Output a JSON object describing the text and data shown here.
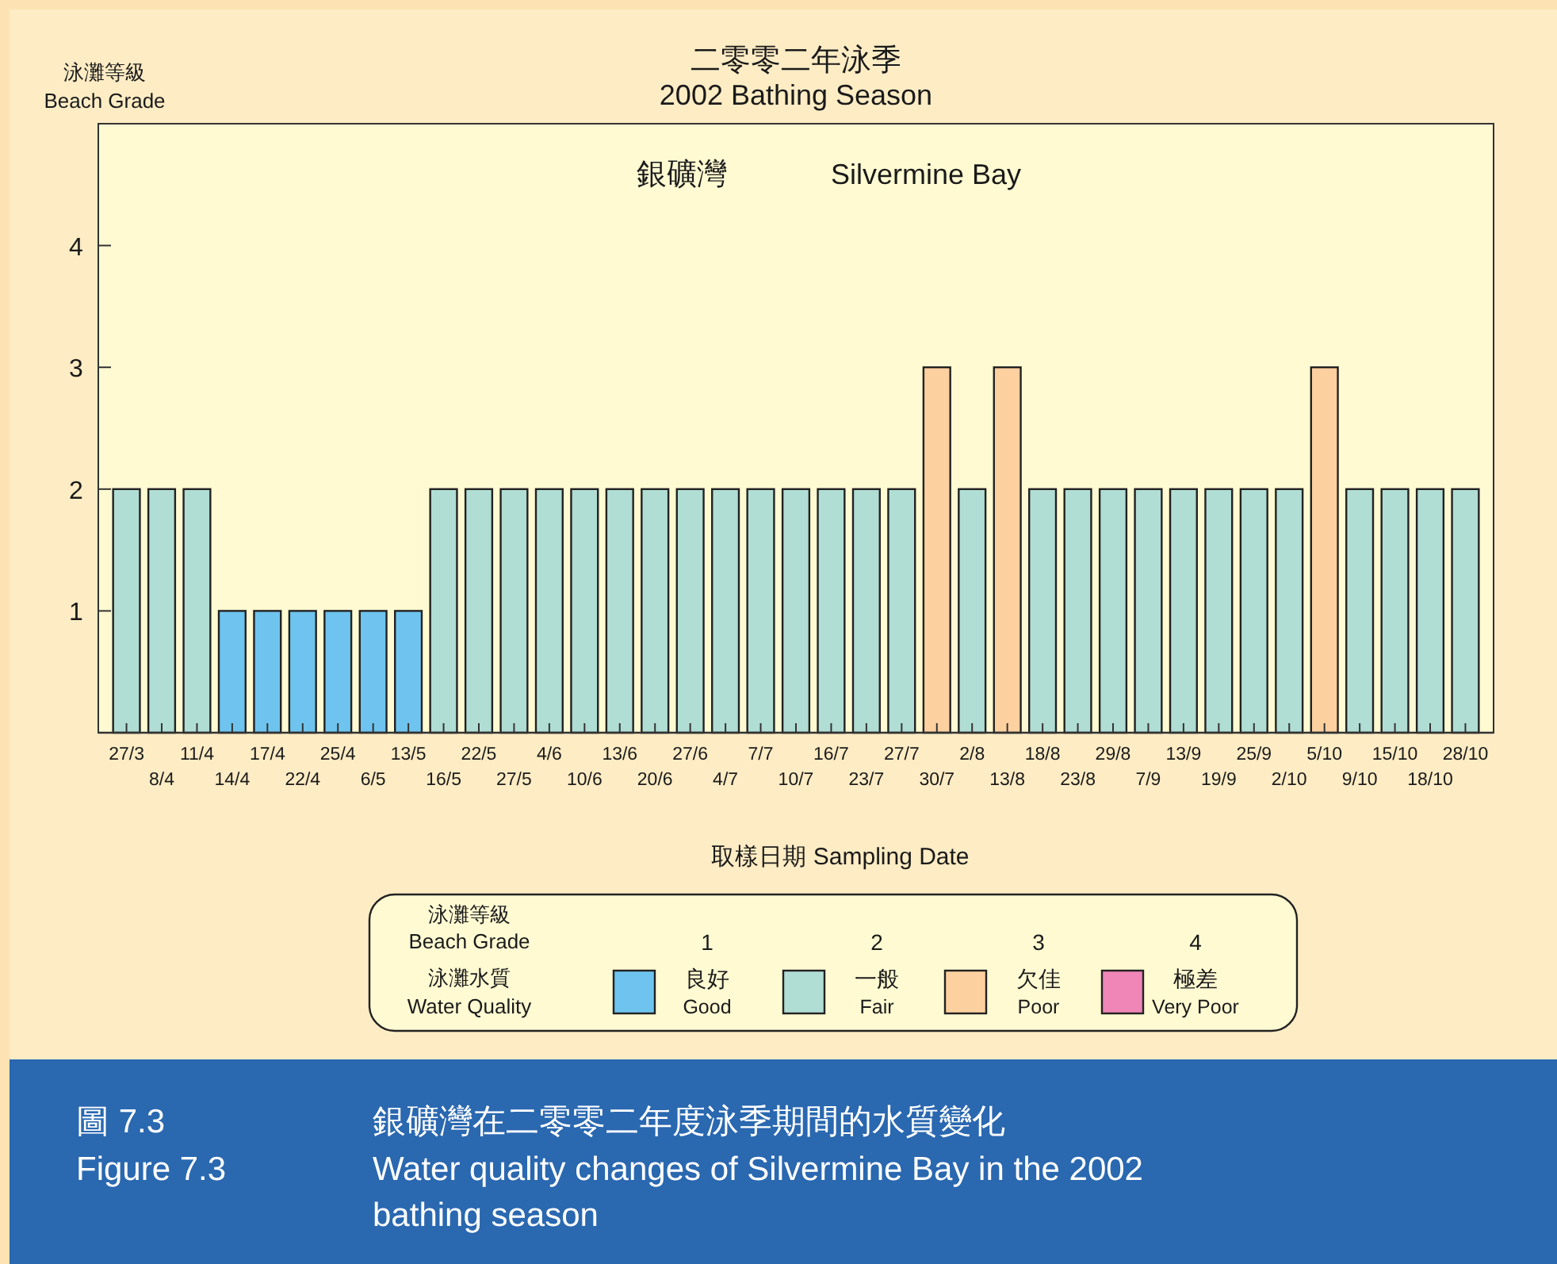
{
  "chart_data": {
    "type": "bar",
    "title": "二零零二年泳季",
    "subtitle": "2002 Bathing Season",
    "xlabel": "取樣日期 Sampling Date",
    "ylabel": "泳灘等級 Beach Grade",
    "legend_title": "泳灘等級 Beach Grade",
    "annotations": [
      "銀礦灣 Silvermine Bay",
      "泳灘水質 Water Quality",
      "1",
      "2",
      "3",
      "4",
      "圖 7.3",
      "Figure 7.3",
      "銀礦灣在二零零二年度泳季期間的水質變化",
      "Water quality changes of Silvermine Bay in the 2002 bathing season"
    ],
    "categories": [
      "27/3",
      "8/4",
      "11/4",
      "14/4",
      "17/4",
      "22/4",
      "25/4",
      "6/5",
      "13/5",
      "16/5",
      "22/5",
      "27/5",
      "4/6",
      "10/6",
      "13/6",
      "20/6",
      "27/6",
      "4/7",
      "7/7",
      "10/7",
      "16/7",
      "23/7",
      "27/7",
      "30/7",
      "2/8",
      "13/8",
      "18/8",
      "23/8",
      "29/8",
      "7/9",
      "13/9",
      "19/9",
      "25/9",
      "2/10",
      "5/10",
      "9/10",
      "15/10",
      "18/10",
      "28/10"
    ],
    "series": [
      {
        "name": "良好 Good",
        "color": "#6ec4ee",
        "values": [
          null,
          null,
          null,
          1,
          1,
          1,
          1,
          1,
          1,
          null,
          null,
          null,
          null,
          null,
          null,
          null,
          null,
          null,
          null,
          null,
          null,
          null,
          null,
          null,
          null,
          null,
          null,
          null,
          null,
          null,
          null,
          null,
          null,
          null,
          null,
          null,
          null,
          null,
          null
        ]
      },
      {
        "name": "一般 Fair",
        "color": "#b0ddd4",
        "values": [
          2,
          2,
          2,
          null,
          null,
          null,
          null,
          null,
          null,
          2,
          2,
          2,
          2,
          2,
          2,
          2,
          2,
          2,
          2,
          2,
          2,
          2,
          2,
          null,
          2,
          null,
          2,
          2,
          2,
          2,
          2,
          2,
          2,
          2,
          null,
          2,
          2,
          2,
          2
        ]
      },
      {
        "name": "欠佳 Poor",
        "color": "#fdd09f",
        "values": [
          null,
          null,
          null,
          null,
          null,
          null,
          null,
          null,
          null,
          null,
          null,
          null,
          null,
          null,
          null,
          null,
          null,
          null,
          null,
          null,
          null,
          null,
          null,
          3,
          null,
          3,
          null,
          null,
          null,
          null,
          null,
          null,
          null,
          null,
          3,
          null,
          null,
          null,
          null
        ]
      },
      {
        "name": "極差 Very Poor",
        "color": "#ef86b7",
        "values": [
          null,
          null,
          null,
          null,
          null,
          null,
          null,
          null,
          null,
          null,
          null,
          null,
          null,
          null,
          null,
          null,
          null,
          null,
          null,
          null,
          null,
          null,
          null,
          null,
          null,
          null,
          null,
          null,
          null,
          null,
          null,
          null,
          null,
          null,
          null,
          null,
          null,
          null,
          null
        ]
      }
    ],
    "ylim": [
      0,
      5
    ],
    "yticks": [
      1,
      2,
      3,
      4
    ],
    "legend": "bottom"
  }
}
